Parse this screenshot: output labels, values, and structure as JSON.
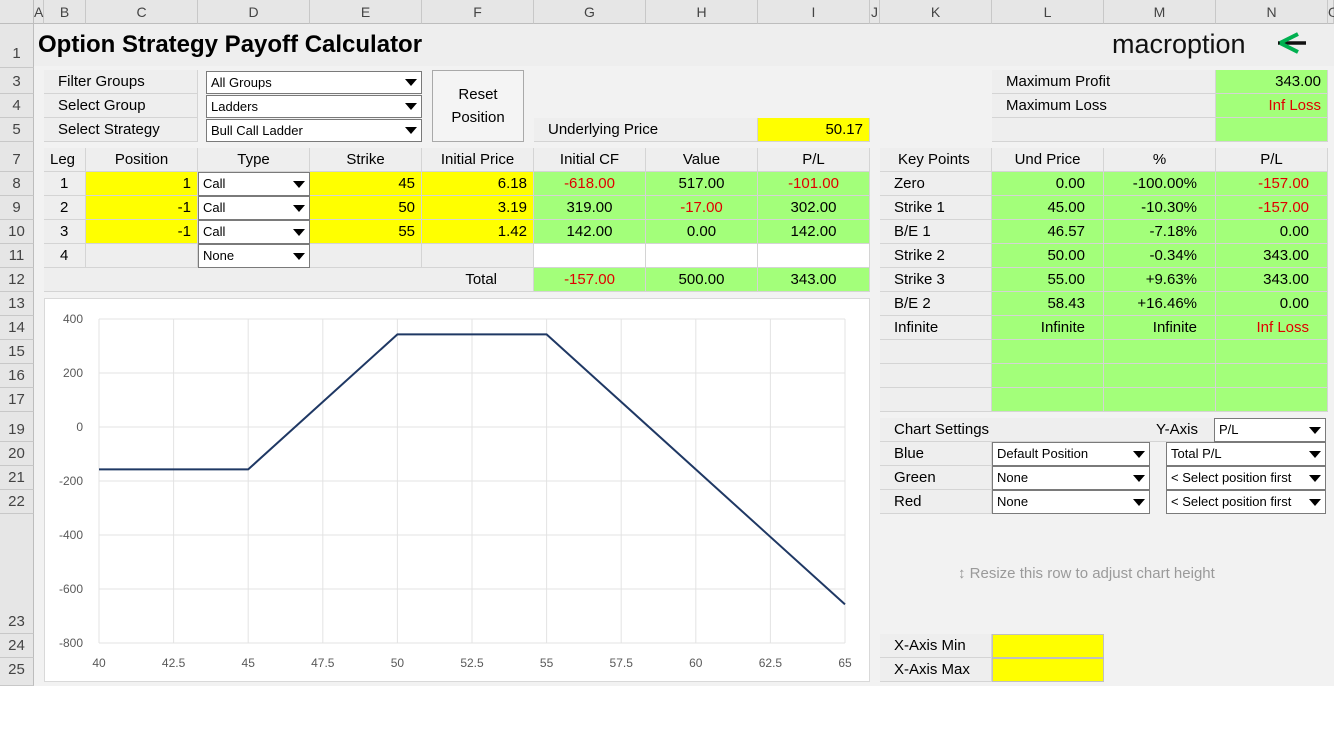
{
  "columns": [
    "A",
    "B",
    "C",
    "D",
    "E",
    "F",
    "G",
    "H",
    "I",
    "J",
    "K",
    "L",
    "M",
    "N",
    "O"
  ],
  "rows": [
    "1",
    "3",
    "4",
    "5",
    "7",
    "8",
    "9",
    "10",
    "11",
    "12",
    "13",
    "14",
    "15",
    "16",
    "17",
    "19",
    "20",
    "21",
    "22",
    "23",
    "24",
    "25"
  ],
  "title": "Option Strategy Payoff Calculator",
  "brand": {
    "name": "macroption",
    "accent_color": "#00b050",
    "icon": "macroption-logo-icon"
  },
  "filters": [
    {
      "label": "Filter Groups",
      "value": "All Groups"
    },
    {
      "label": "Select Group",
      "value": "Ladders"
    },
    {
      "label": "Select Strategy",
      "value": "Bull Call Ladder"
    }
  ],
  "reset_button": {
    "line1": "Reset",
    "line2": "Position"
  },
  "underlying": {
    "label": "Underlying Price",
    "value": "50.17"
  },
  "summary": {
    "max_profit_label": "Maximum Profit",
    "max_profit": "343.00",
    "max_loss_label": "Maximum Loss",
    "max_loss": "Inf Loss"
  },
  "legs_table": {
    "headers": [
      "Leg",
      "Position",
      "Type",
      "Strike",
      "Initial Price",
      "Initial CF",
      "Value",
      "P/L"
    ],
    "rows": [
      {
        "leg": "1",
        "position": "1",
        "type": "Call",
        "strike": "45",
        "price": "6.18",
        "cf": "-618.00",
        "value": "517.00",
        "pl": "-101.00"
      },
      {
        "leg": "2",
        "position": "-1",
        "type": "Call",
        "strike": "50",
        "price": "3.19",
        "cf": "319.00",
        "value": "-17.00",
        "pl": "302.00"
      },
      {
        "leg": "3",
        "position": "-1",
        "type": "Call",
        "strike": "55",
        "price": "1.42",
        "cf": "142.00",
        "value": "0.00",
        "pl": "142.00"
      },
      {
        "leg": "4",
        "position": "",
        "type": "None",
        "strike": "",
        "price": "",
        "cf": "",
        "value": "",
        "pl": ""
      }
    ],
    "total_label": "Total",
    "total": {
      "cf": "-157.00",
      "value": "500.00",
      "pl": "343.00"
    }
  },
  "key_points": {
    "headers": [
      "Key Points",
      "Und Price",
      "%",
      "P/L"
    ],
    "rows": [
      {
        "name": "Zero",
        "price": "0.00",
        "pct": "-100.00%",
        "pl": "-157.00"
      },
      {
        "name": "Strike 1",
        "price": "45.00",
        "pct": "-10.30%",
        "pl": "-157.00"
      },
      {
        "name": "B/E 1",
        "price": "46.57",
        "pct": "-7.18%",
        "pl": "0.00"
      },
      {
        "name": "Strike 2",
        "price": "50.00",
        "pct": "-0.34%",
        "pl": "343.00"
      },
      {
        "name": "Strike 3",
        "price": "55.00",
        "pct": "+9.63%",
        "pl": "343.00"
      },
      {
        "name": "B/E 2",
        "price": "58.43",
        "pct": "+16.46%",
        "pl": "0.00"
      },
      {
        "name": "Infinite",
        "price": "Infinite",
        "pct": "Infinite",
        "pl": "Inf Loss"
      }
    ]
  },
  "chart_settings": {
    "label": "Chart Settings",
    "y_axis_label": "Y-Axis",
    "y_axis_value": "P/L",
    "rows": [
      {
        "color": "Blue",
        "position": "Default Position",
        "series": "Total P/L"
      },
      {
        "color": "Green",
        "position": "None",
        "series": "< Select position first"
      },
      {
        "color": "Red",
        "position": "None",
        "series": "< Select position first"
      }
    ]
  },
  "resize_hint": "Resize this row to adjust chart height",
  "xaxis": {
    "min_label": "X-Axis Min",
    "max_label": "X-Axis Max",
    "min_value": "",
    "max_value": ""
  },
  "chart_data": {
    "type": "line",
    "title": "",
    "xlabel": "",
    "ylabel": "",
    "xlim": [
      40,
      65
    ],
    "ylim": [
      -800,
      400
    ],
    "x_ticks": [
      "40",
      "42.5",
      "45",
      "47.5",
      "50",
      "52.5",
      "55",
      "57.5",
      "60",
      "62.5",
      "65"
    ],
    "y_ticks": [
      "400",
      "200",
      "0",
      "-200",
      "-400",
      "-600",
      "-800"
    ],
    "grid": true,
    "series": [
      {
        "color": "#1f3864",
        "x": [
          40,
          45,
          50,
          55,
          65
        ],
        "y": [
          -157,
          -157,
          343,
          343,
          -657
        ]
      }
    ]
  }
}
